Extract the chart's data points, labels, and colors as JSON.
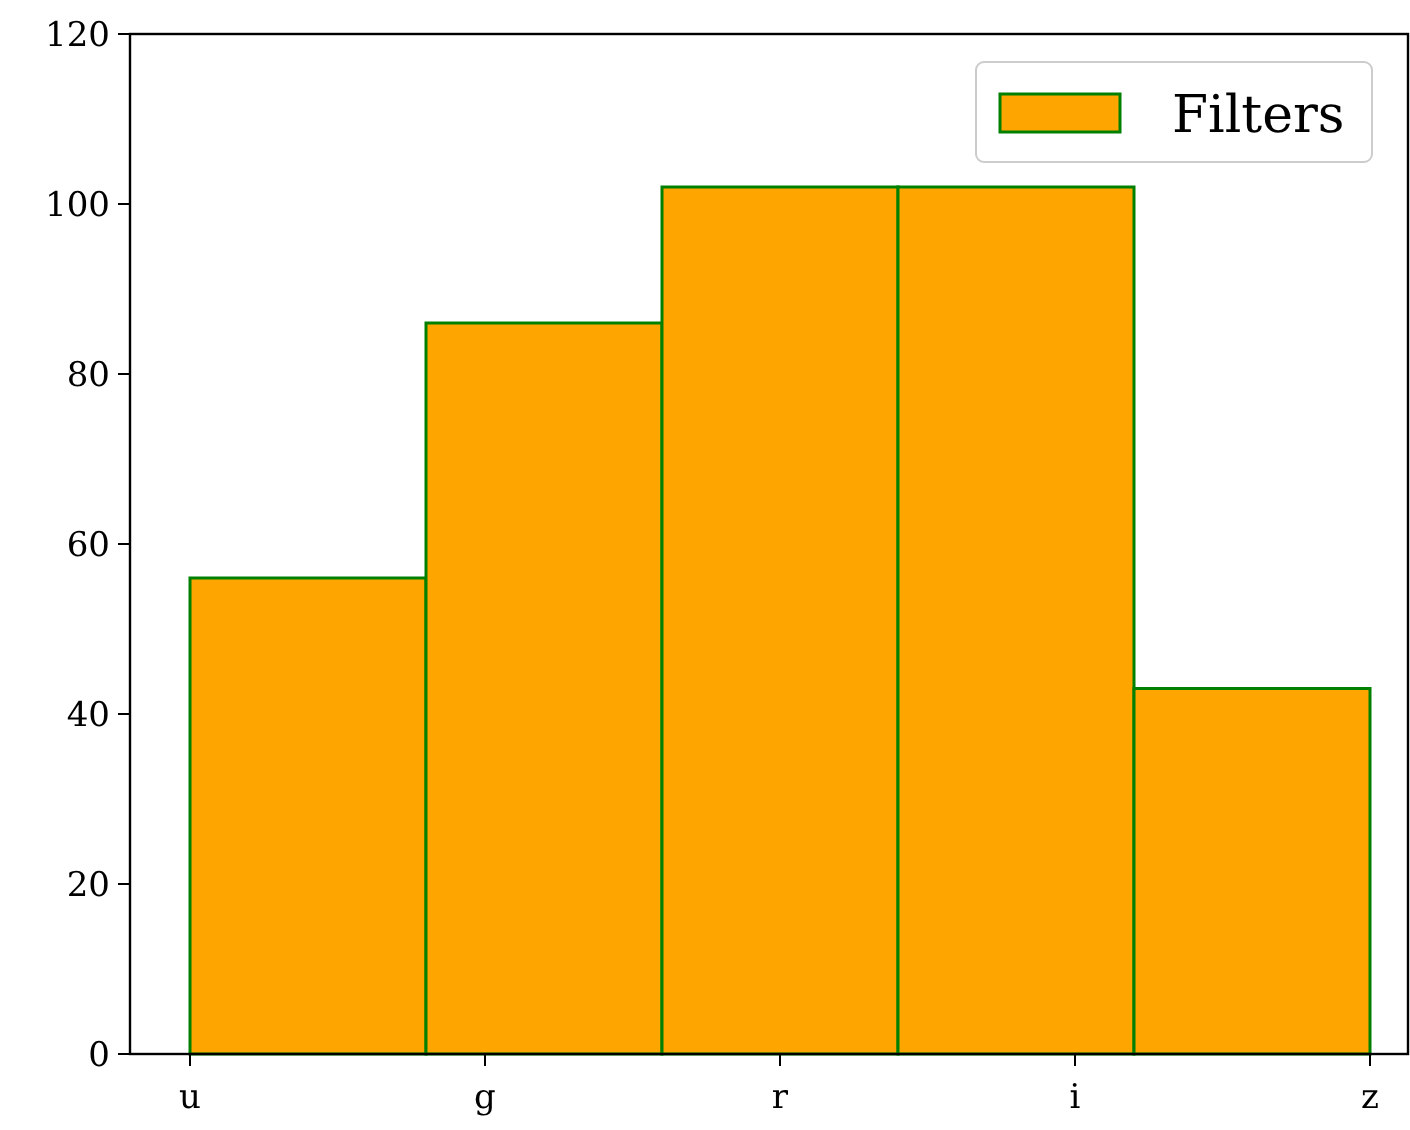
{
  "chart_data": {
    "type": "bar",
    "categories": [
      null,
      null,
      null,
      null,
      null
    ],
    "series": [
      {
        "name": "Filters",
        "color": "#ffa500",
        "values": [
          56,
          86,
          102,
          102,
          43
        ]
      }
    ],
    "ylim": [
      0,
      120
    ],
    "yticks": [
      0,
      20,
      40,
      60,
      80,
      100,
      120
    ],
    "annotations": [
      "u",
      "g",
      "r",
      "i",
      "z"
    ],
    "legend": "top right"
  }
}
